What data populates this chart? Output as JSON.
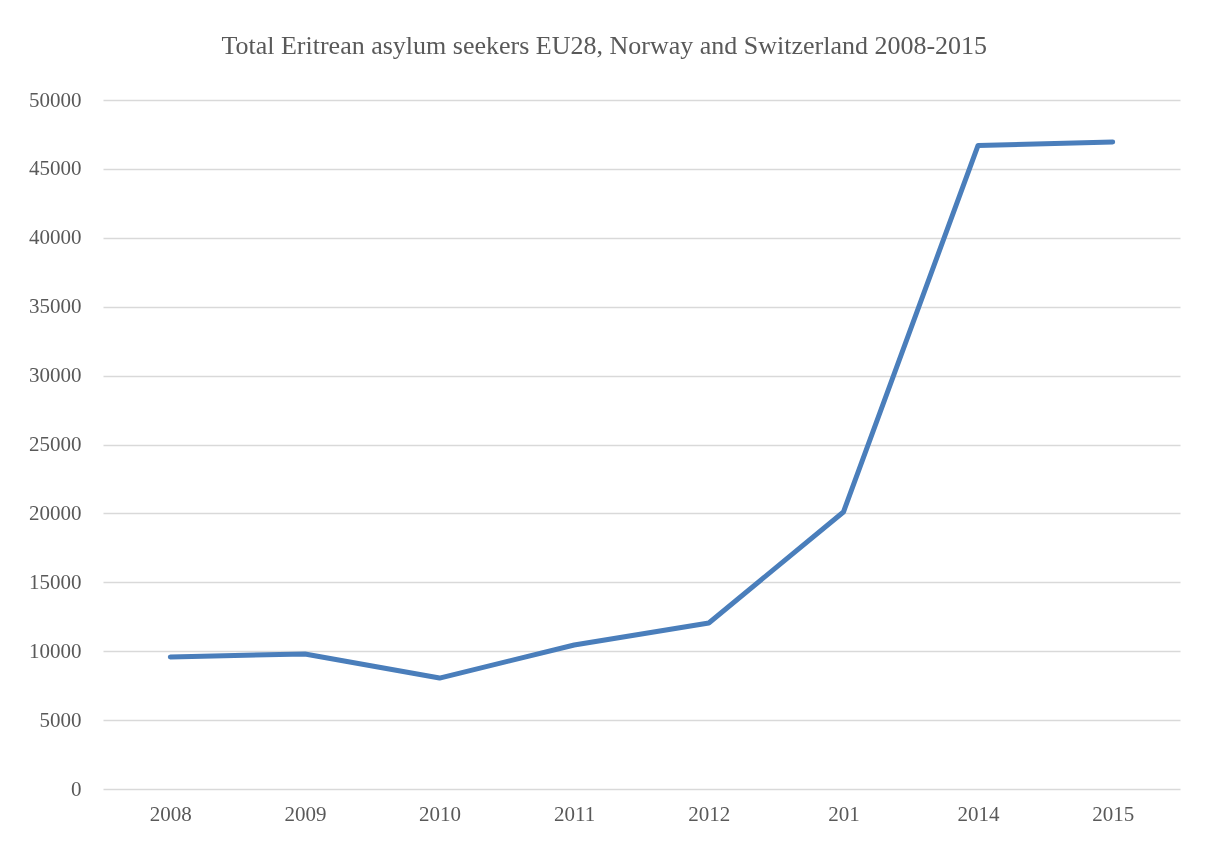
{
  "chart_data": {
    "type": "line",
    "title": "Total Eritrean asylum seekers EU28, Norway and Switzerland 2008-2015",
    "categories": [
      "2008",
      "2009",
      "2010",
      "2011",
      "2012",
      "201",
      "2014",
      "2015"
    ],
    "series": [
      {
        "color": "#4a7ebb",
        "values": [
          9580,
          9800,
          8050,
          10450,
          12050,
          20100,
          46700,
          46950
        ]
      }
    ],
    "ylim": [
      0,
      50000
    ],
    "yticks": [
      0,
      5000,
      10000,
      15000,
      20000,
      25000,
      30000,
      35000,
      40000,
      45000,
      50000
    ],
    "grid": "y",
    "line_style": "solid"
  }
}
